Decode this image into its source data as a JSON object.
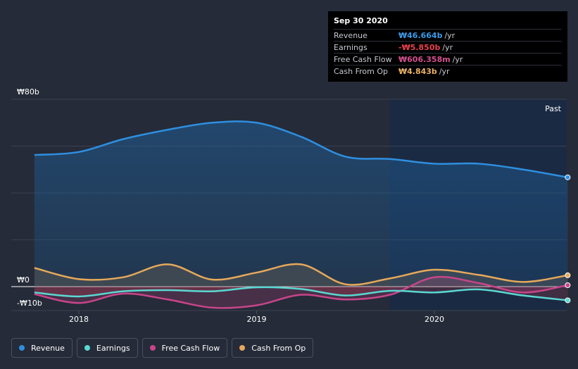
{
  "tooltip": {
    "date": "Sep 30 2020",
    "rows": [
      {
        "label": "Revenue",
        "value": "₩46.664b",
        "unit": "/yr",
        "color": "#3a9ae8"
      },
      {
        "label": "Earnings",
        "value": "-₩5.850b",
        "unit": "/yr",
        "color": "#e8404a"
      },
      {
        "label": "Free Cash Flow",
        "value": "₩606.358m",
        "unit": "/yr",
        "color": "#d44f8e"
      },
      {
        "label": "Cash From Op",
        "value": "₩4.843b",
        "unit": "/yr",
        "color": "#e9b064"
      }
    ]
  },
  "past_label": "Past",
  "legend": [
    {
      "label": "Revenue",
      "color": "#2e8fe0"
    },
    {
      "label": "Earnings",
      "color": "#5ad8d2"
    },
    {
      "label": "Free Cash Flow",
      "color": "#c8458a"
    },
    {
      "label": "Cash From Op",
      "color": "#e6a95a"
    }
  ],
  "chart_data": {
    "type": "area",
    "title": "",
    "y_unit": "₩ billions",
    "ylim": [
      -10,
      80
    ],
    "y_tick_labels": [
      {
        "value": 80,
        "label": "₩80b"
      },
      {
        "value": 0,
        "label": "₩0"
      },
      {
        "value": -10,
        "label": "-₩10b"
      }
    ],
    "x_tick_labels": [
      {
        "value": 2018.0,
        "label": "2018"
      },
      {
        "value": 2019.0,
        "label": "2019"
      },
      {
        "value": 2020.0,
        "label": "2020"
      }
    ],
    "xlim": [
      2017.62,
      2020.75
    ],
    "past_start": 2019.75,
    "series": [
      {
        "name": "Revenue",
        "color": "#2e8fe0",
        "x": [
          2017.75,
          2018.0,
          2018.25,
          2018.5,
          2018.75,
          2019.0,
          2019.25,
          2019.5,
          2019.75,
          2020.0,
          2020.25,
          2020.5,
          2020.75
        ],
        "values": [
          56.2,
          57.5,
          63.0,
          67.0,
          70.0,
          70.0,
          64.0,
          55.5,
          54.5,
          52.5,
          52.5,
          50.0,
          46.664
        ]
      },
      {
        "name": "Earnings",
        "color": "#5ad8d2",
        "x": [
          2017.75,
          2018.0,
          2018.25,
          2018.5,
          2018.75,
          2019.0,
          2019.25,
          2019.5,
          2019.75,
          2020.0,
          2020.25,
          2020.5,
          2020.75
        ],
        "values": [
          -2.5,
          -4.2,
          -2.0,
          -1.5,
          -2.0,
          -0.3,
          -1.0,
          -3.8,
          -1.8,
          -2.5,
          -1.2,
          -3.8,
          -5.85
        ]
      },
      {
        "name": "Free Cash Flow",
        "color": "#c8458a",
        "x": [
          2017.75,
          2018.0,
          2018.25,
          2018.5,
          2018.75,
          2019.0,
          2019.25,
          2019.5,
          2019.75,
          2020.0,
          2020.25,
          2020.5,
          2020.75
        ],
        "values": [
          -3.2,
          -7.0,
          -3.0,
          -5.5,
          -9.0,
          -8.0,
          -3.5,
          -5.5,
          -3.5,
          4.0,
          1.5,
          -2.5,
          0.606
        ]
      },
      {
        "name": "Cash From Op",
        "color": "#e6a95a",
        "x": [
          2017.75,
          2018.0,
          2018.25,
          2018.5,
          2018.75,
          2019.0,
          2019.25,
          2019.5,
          2019.75,
          2020.0,
          2020.25,
          2020.5,
          2020.75
        ],
        "values": [
          8.0,
          3.2,
          4.0,
          9.5,
          3.0,
          6.0,
          9.5,
          1.0,
          3.5,
          7.2,
          5.0,
          2.0,
          4.843
        ]
      }
    ]
  }
}
